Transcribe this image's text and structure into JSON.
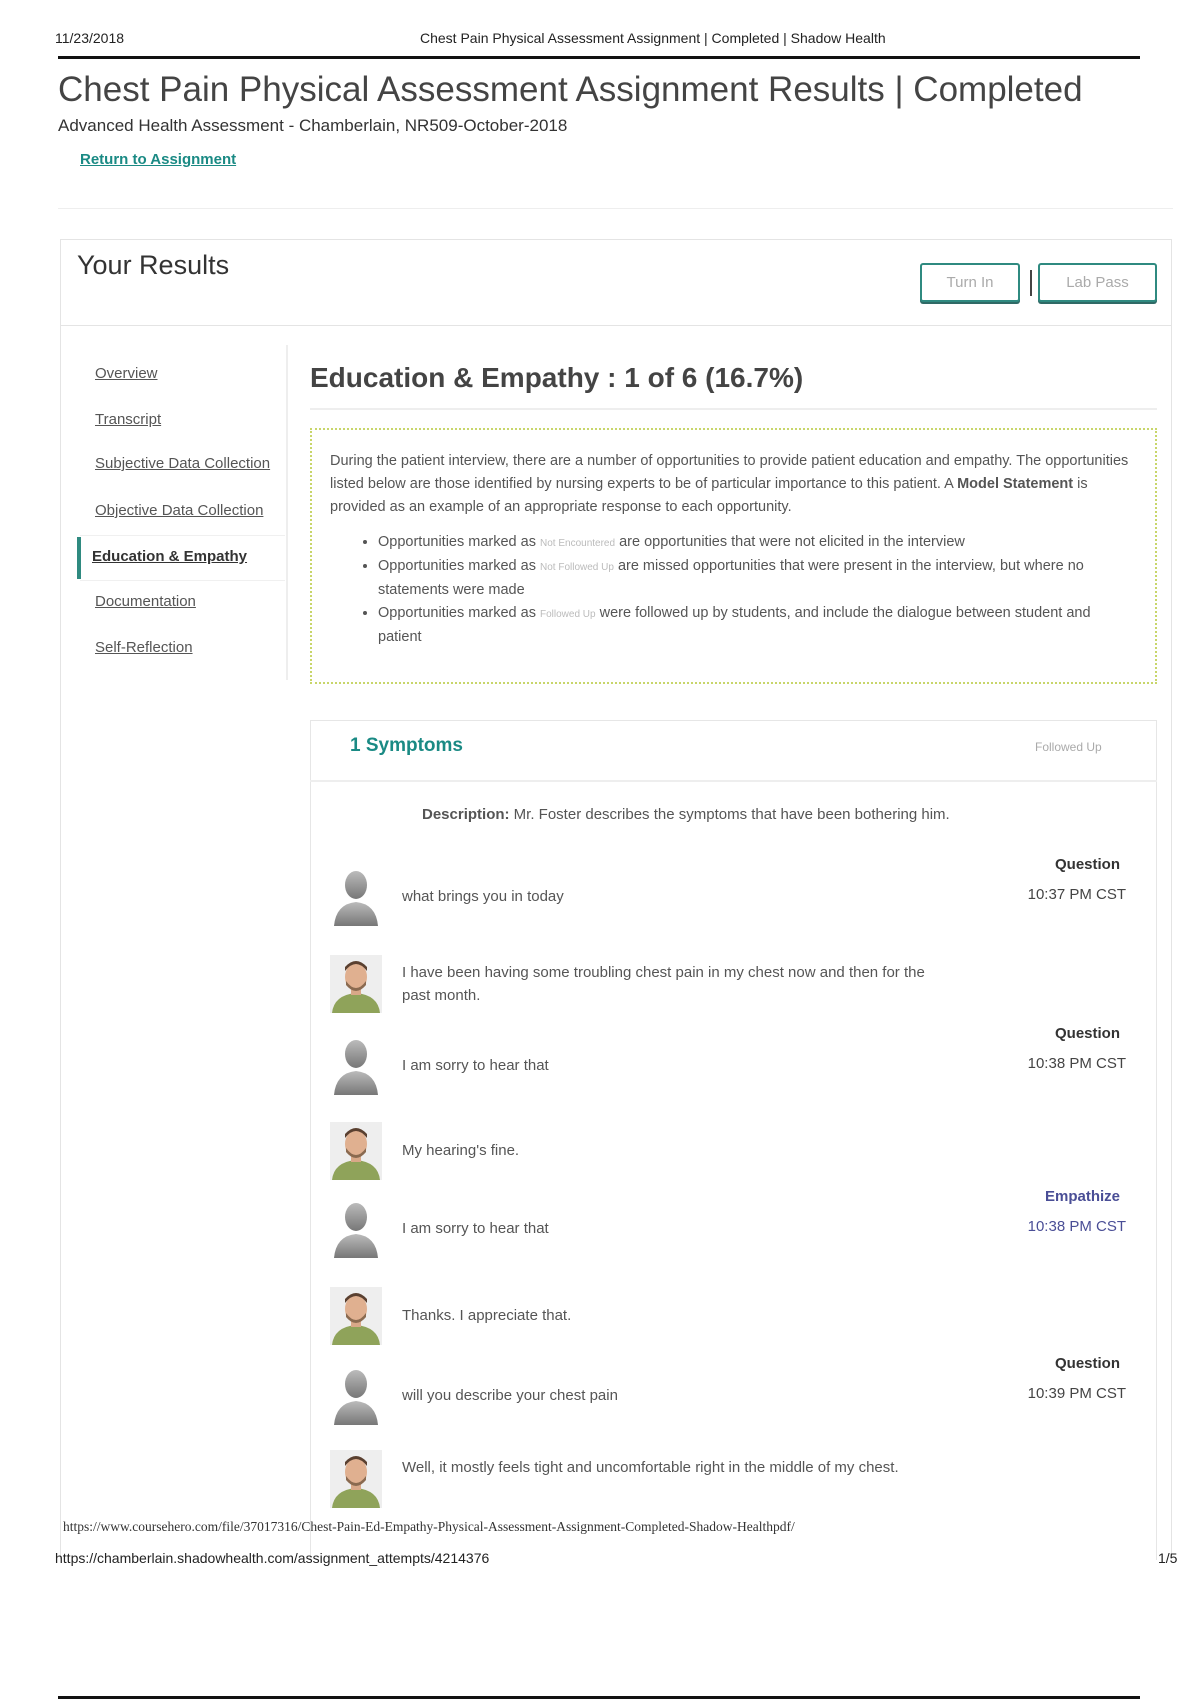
{
  "print_header": {
    "date": "11/23/2018",
    "page_title": "Chest Pain Physical Assessment Assignment | Completed | Shadow Health"
  },
  "page": {
    "title": "Chest Pain Physical Assessment Assignment Results | Completed",
    "subtitle": "Advanced Health Assessment - Chamberlain, NR509-October-2018",
    "return_link": "Return to Assignment"
  },
  "results": {
    "title": "Your Results",
    "turn_in": "Turn In",
    "lab_pass": "Lab Pass"
  },
  "sidebar": {
    "items": [
      {
        "label": "Overview"
      },
      {
        "label": "Transcript"
      },
      {
        "label": "Subjective Data Collection"
      },
      {
        "label": "Objective Data Collection"
      },
      {
        "label": "Education & Empathy",
        "active": true
      },
      {
        "label": "Documentation"
      },
      {
        "label": "Self-Reflection"
      }
    ]
  },
  "section": {
    "heading": "Education & Empathy : 1 of 6 (16.7%)",
    "intro_pre": "During the patient interview, there are a number of opportunities to provide patient education and empathy. The opportunities listed below are those identified by nursing experts to be of particular importance to this patient. A ",
    "intro_bold": "Model Statement",
    "intro_post": " is provided as an example of an appropriate response to each opportunity.",
    "bullets": [
      {
        "pre": "Opportunities marked as ",
        "tag": "Not Encountered",
        "post": " are opportunities that were not elicited in the interview"
      },
      {
        "pre": "Opportunities marked as ",
        "tag": "Not Followed Up",
        "post": " are missed opportunities that were present in the interview, but where no statements were made"
      },
      {
        "pre": "Opportunities marked as ",
        "tag": "Followed Up",
        "post": " were followed up by students, and include the dialogue between student and patient"
      }
    ]
  },
  "opportunity": {
    "title": "1 Symptoms",
    "status": "Followed Up",
    "description_label": "Description:",
    "description": " Mr. Foster describes the symptoms that have been bothering him.",
    "dialogue": [
      {
        "speaker": "student",
        "text": "what brings you in today",
        "label": "Question",
        "time": "10:37 PM CST"
      },
      {
        "speaker": "patient",
        "text": "I have been having some troubling chest pain in my chest now and then for the past month."
      },
      {
        "speaker": "student",
        "text": "I am sorry to hear that",
        "label": "Question",
        "time": "10:38 PM CST"
      },
      {
        "speaker": "patient",
        "text": "My hearing's fine."
      },
      {
        "speaker": "student",
        "text": "I am sorry to hear that",
        "label": "Empathize",
        "time": "10:38 PM CST"
      },
      {
        "speaker": "patient",
        "text": "Thanks. I appreciate that."
      },
      {
        "speaker": "student",
        "text": "will you describe your chest pain",
        "label": "Question",
        "time": "10:39 PM CST"
      },
      {
        "speaker": "patient",
        "text": "Well, it mostly feels tight and uncomfortable right in the middle of my chest."
      }
    ]
  },
  "watermark_url": "https://www.coursehero.com/file/37017316/Chest-Pain-Ed-Empathy-Physical-Assessment-Assignment-Completed-Shadow-Healthpdf/",
  "print_footer": {
    "url": "https://chamberlain.shadowhealth.com/assignment_attempts/4214376",
    "page": "1/5"
  },
  "colors": {
    "accent": "#1a8a84",
    "empathize": "#4a4e96",
    "info_border": "#c8d66a"
  }
}
